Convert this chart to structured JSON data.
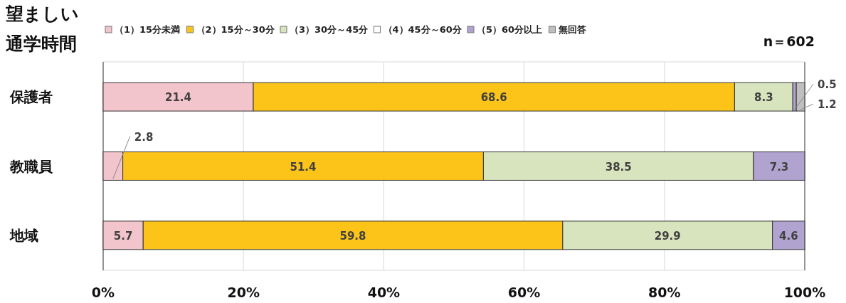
{
  "chart_data": {
    "type": "bar",
    "orientation": "horizontal",
    "stacked": true,
    "title": "望ましい通学時間",
    "categories": [
      "保護者",
      "教職員",
      "地域"
    ],
    "series": [
      {
        "name": "（1）15分未満",
        "color": "#f2c4cb",
        "values": [
          21.4,
          2.8,
          5.7
        ]
      },
      {
        "name": "（2）15分～30分",
        "color": "#fcc419",
        "values": [
          68.6,
          51.4,
          59.8
        ]
      },
      {
        "name": "（3）30分～45分",
        "color": "#d7e4bd",
        "values": [
          8.3,
          38.5,
          29.9
        ]
      },
      {
        "name": "（4）45分～60分",
        "color": "#ffffff",
        "values": [
          null,
          null,
          null
        ]
      },
      {
        "name": "（5）60分以上",
        "color": "#b1a3d0",
        "values": [
          0.5,
          7.3,
          4.6
        ]
      },
      {
        "name": "無回答",
        "color": "#bfbfbf",
        "values": [
          1.2,
          null,
          null
        ]
      }
    ],
    "data_labels": true,
    "xlim": [
      0,
      100
    ],
    "xticks": [
      {
        "value": 0,
        "label": "0%"
      },
      {
        "value": 20,
        "label": "20%"
      },
      {
        "value": 40,
        "label": "40%"
      },
      {
        "value": 60,
        "label": "60%"
      },
      {
        "value": 80,
        "label": "80%"
      },
      {
        "value": 100,
        "label": "100%"
      }
    ],
    "grid": "x",
    "legend": "top",
    "annotations": [
      "n＝602"
    ]
  }
}
